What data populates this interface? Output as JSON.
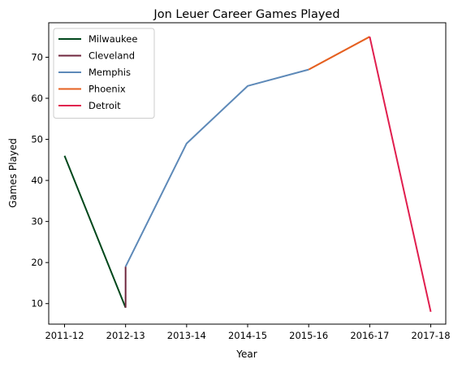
{
  "chart_data": {
    "type": "line",
    "title": "Jon Leuer Career Games Played",
    "xlabel": "Year",
    "ylabel": "Games Played",
    "categories": [
      "2011-12",
      "2012-13",
      "2013-14",
      "2014-15",
      "2015-16",
      "2016-17",
      "2017-18"
    ],
    "y_ticks": [
      10,
      20,
      30,
      40,
      50,
      60,
      70
    ],
    "ylim": [
      5,
      78.4
    ],
    "grid": false,
    "legend_position": "top-left",
    "series": [
      {
        "name": "Milwaukee",
        "color": "#00471B",
        "points": [
          [
            "2011-12",
            46
          ],
          [
            "2012-13",
            9
          ]
        ]
      },
      {
        "name": "Cleveland",
        "color": "#6F263D",
        "points": [
          [
            "2012-13",
            9
          ],
          [
            "2012-13",
            19
          ]
        ]
      },
      {
        "name": "Memphis",
        "color": "#5D89B8",
        "points": [
          [
            "2012-13",
            19
          ],
          [
            "2013-14",
            49
          ],
          [
            "2014-15",
            63
          ],
          [
            "2015-16",
            67
          ]
        ]
      },
      {
        "name": "Phoenix",
        "color": "#E56020",
        "points": [
          [
            "2015-16",
            67
          ],
          [
            "2016-17",
            75
          ]
        ]
      },
      {
        "name": "Detroit",
        "color": "#E01E4E",
        "points": [
          [
            "2016-17",
            75
          ],
          [
            "2017-18",
            8
          ]
        ]
      }
    ]
  }
}
